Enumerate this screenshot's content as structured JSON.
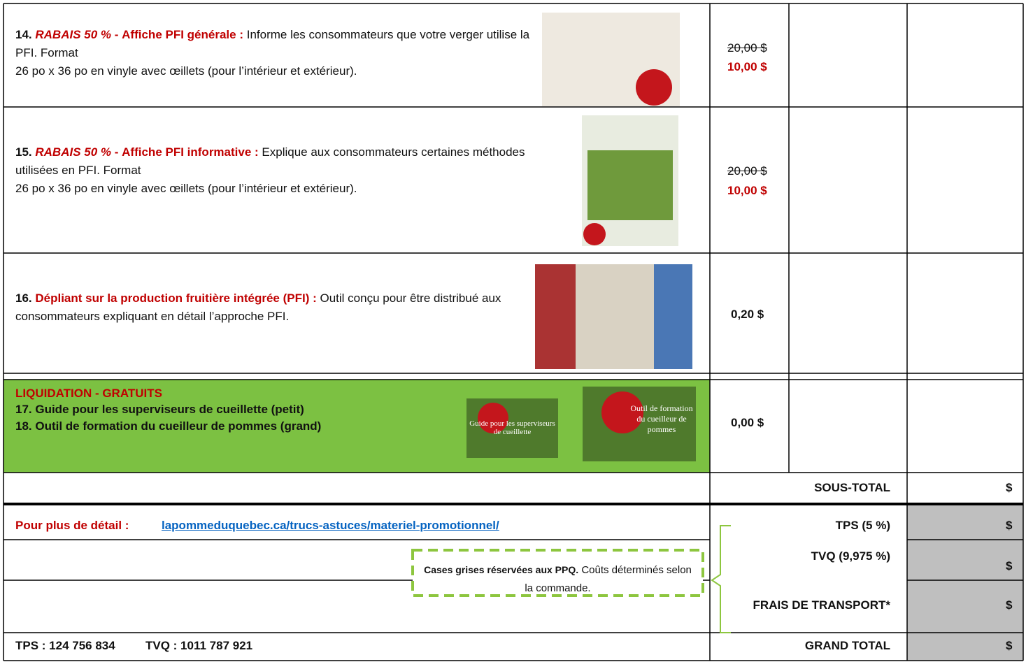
{
  "items": [
    {
      "number": "14.",
      "tag": "RABAIS 50 %",
      "sep": "-",
      "title": "Affiche PFI générale :",
      "description": "Informe les consommateurs que votre verger utilise la PFI. Format",
      "format": "26 po x 36 po en vinyle avec œillets (pour l’intérieur et extérieur).",
      "old_price": "20,00 $",
      "price": "10,00 $"
    },
    {
      "number": "15.",
      "tag": "RABAIS 50 %",
      "sep": "-",
      "title": "Affiche PFI informative :",
      "description": "Explique aux consommateurs certaines méthodes utilisées en PFI. Format",
      "format": "26 po x 36 po en vinyle avec œillets (pour l’intérieur et extérieur).",
      "old_price": "20,00 $",
      "price": "10,00 $"
    },
    {
      "number": "16.",
      "title": "Dépliant sur la production fruitière intégrée (PFI) :",
      "description": "Outil conçu pour être distribué aux consommateurs expliquant en détail l’approche PFI.",
      "price": "0,20 $"
    }
  ],
  "liquidation": {
    "heading": "LIQUIDATION - GRATUITS",
    "lines": [
      "17. Guide pour les superviseurs de cueillette (petit)",
      "18. Outil de formation du cueilleur de pommes (grand)"
    ],
    "captions": [
      "Guide pour les superviseurs de cueillette",
      "Outil de formation du cueilleur de pommes"
    ],
    "price": "0,00 $"
  },
  "totals": [
    {
      "label": "SOUS-TOTAL",
      "value": "$"
    },
    {
      "label": "TPS (5 %)",
      "value": "$"
    },
    {
      "label": "TVQ (9,975 %)",
      "value": "$"
    },
    {
      "label": "FRAIS DE TRANSPORT*",
      "value": "$"
    },
    {
      "label": "GRAND TOTAL",
      "value": "$"
    }
  ],
  "detail": {
    "label": "Pour plus de détail :",
    "link": "lapommeduquebec.ca/trucs-astuces/materiel-promotionnel/"
  },
  "note": {
    "bold": "Cases grises réservées aux PPQ.",
    "text": "Coûts déterminés selon la commande."
  },
  "tax_numbers": [
    "TPS : 124 756 834",
    "TVQ : 1011 787 921"
  ]
}
